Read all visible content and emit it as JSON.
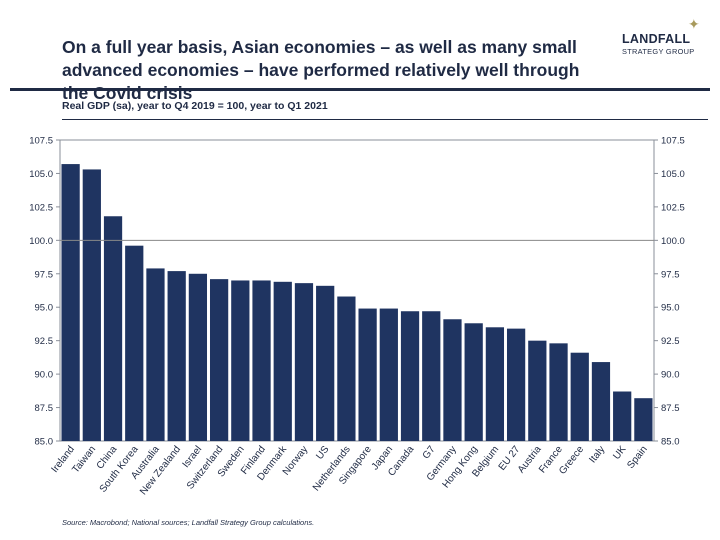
{
  "header": {
    "title": "On a full year basis, Asian economies – as well as many small advanced economies – have performed relatively well through the Covid crisis",
    "subtitle": "Real GDP (sa), year to Q4 2019 = 100, year to Q1 2021"
  },
  "logo": {
    "name": "LANDFALL",
    "sub": "STRATEGY GROUP"
  },
  "source": "Source: Macrobond; National sources; Landfall Strategy Group calculations.",
  "colors": {
    "bar": "#1f3461",
    "text": "#1f2a44",
    "reference_line": "#888888"
  },
  "chart_data": {
    "type": "bar",
    "title": "",
    "xlabel": "",
    "ylabel": "",
    "categories": [
      "Ireland",
      "Taiwan",
      "China",
      "South Korea",
      "Australia",
      "New Zealand",
      "Israel",
      "Switzerland",
      "Sweden",
      "Finland",
      "Denmark",
      "Norway",
      "US",
      "Netherlands",
      "Singapore",
      "Japan",
      "Canada",
      "G7",
      "Germany",
      "Hong Kong",
      "Belgium",
      "EU 27",
      "Austria",
      "France",
      "Greece",
      "Italy",
      "UK",
      "Spain"
    ],
    "values": [
      105.7,
      105.3,
      101.8,
      99.6,
      97.9,
      97.7,
      97.5,
      97.1,
      97.0,
      97.0,
      96.9,
      96.8,
      96.6,
      95.8,
      94.9,
      94.9,
      94.7,
      94.7,
      94.1,
      93.8,
      93.5,
      93.4,
      92.5,
      92.3,
      91.6,
      90.9,
      88.7,
      88.2
    ],
    "ylim": [
      85.0,
      107.5
    ],
    "yticks": [
      "85.0",
      "87.5",
      "90.0",
      "92.5",
      "95.0",
      "97.5",
      "100.0",
      "102.5",
      "105.0",
      "107.5"
    ],
    "reference_line": 100.0,
    "dual_y_axis": true,
    "grid": false,
    "legend": "none"
  }
}
